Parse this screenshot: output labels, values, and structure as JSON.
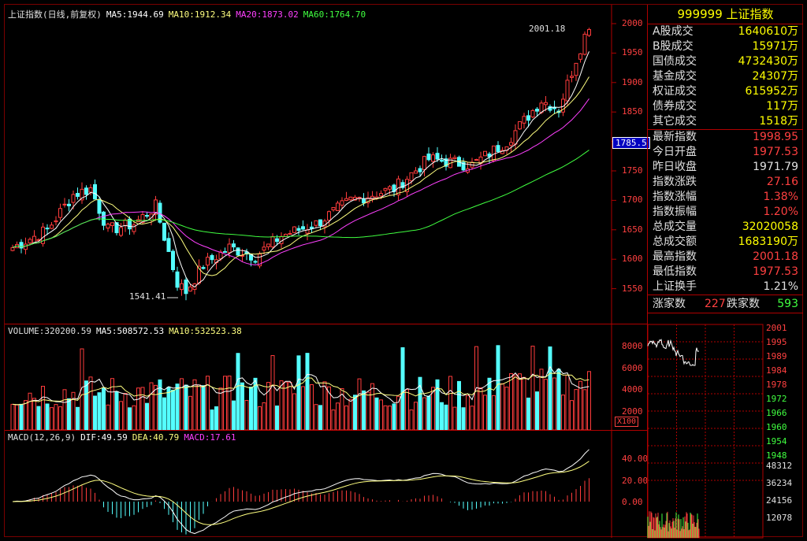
{
  "price_panel": {
    "title": "上证指数(日线,前复权)",
    "ma5": "MA5:1944.69",
    "ma10": "MA10:1912.34",
    "ma20": "MA20:1873.02",
    "ma60": "MA60:1764.70",
    "high_label": "2001.18",
    "low_label": "1541.41",
    "axis_ticks": [
      "2000",
      "1950",
      "1900",
      "1850",
      "1800",
      "1750",
      "1700",
      "1650",
      "1600",
      "1550"
    ],
    "current_tag": "1785.5",
    "colors": {
      "up": "#ff3c3c",
      "down": "#54ffff",
      "ma5": "#ffffff",
      "ma10": "#ffff80",
      "ma20": "#ff40ff",
      "ma60": "#40ff40"
    }
  },
  "volume_panel": {
    "title": "VOLUME:320200.59",
    "ma5": "MA5:508572.53",
    "ma10": "MA10:532523.38",
    "axis_ticks": [
      "8000",
      "6000",
      "4000",
      "2000"
    ],
    "unit": "X100"
  },
  "macd_panel": {
    "title": "MACD(12,26,9)",
    "dif": "DIF:49.59",
    "dea": "DEA:40.79",
    "macd": "MACD:17.61",
    "axis_ticks": [
      "40.00",
      "20.00",
      "0.00"
    ]
  },
  "quote": {
    "header": "999999 上证指数",
    "volumes": [
      {
        "label": "A股成交",
        "value": "1640610万"
      },
      {
        "label": "B股成交",
        "value": "15971万"
      },
      {
        "label": "国债成交",
        "value": "4732430万"
      },
      {
        "label": "基金成交",
        "value": "24307万"
      },
      {
        "label": "权证成交",
        "value": "615952万"
      },
      {
        "label": "债券成交",
        "value": "117万"
      },
      {
        "label": "其它成交",
        "value": "1518万"
      }
    ],
    "stats": [
      {
        "label": "最新指数",
        "value": "1998.95",
        "color": "#ff4040"
      },
      {
        "label": "今日开盘",
        "value": "1977.53",
        "color": "#ff4040"
      },
      {
        "label": "昨日收盘",
        "value": "1971.79",
        "color": "#e0e0e0"
      },
      {
        "label": "指数涨跌",
        "value": "27.16",
        "color": "#ff4040"
      },
      {
        "label": "指数涨幅",
        "value": "1.38%",
        "color": "#ff4040"
      },
      {
        "label": "指数振幅",
        "value": "1.20%",
        "color": "#ff4040"
      },
      {
        "label": "总成交量",
        "value": "32020058",
        "color": "#ffff00"
      },
      {
        "label": "总成交额",
        "value": "1683190万",
        "color": "#ffff00"
      },
      {
        "label": "最高指数",
        "value": "2001.18",
        "color": "#ff4040"
      },
      {
        "label": "最低指数",
        "value": "1977.53",
        "color": "#ff4040"
      },
      {
        "label": "上证换手",
        "value": "1.21%",
        "color": "#e0e0e0"
      }
    ],
    "up_label": "涨家数",
    "up_count": "227",
    "down_label": "跌家数",
    "down_count": "593"
  },
  "mini_chart": {
    "price_ticks": [
      "2001",
      "1995",
      "1989",
      "1984",
      "1978",
      "1972",
      "1966",
      "1960",
      "1954",
      "1948"
    ],
    "volume_ticks": [
      "48312",
      "36234",
      "24156",
      "12078"
    ]
  }
}
